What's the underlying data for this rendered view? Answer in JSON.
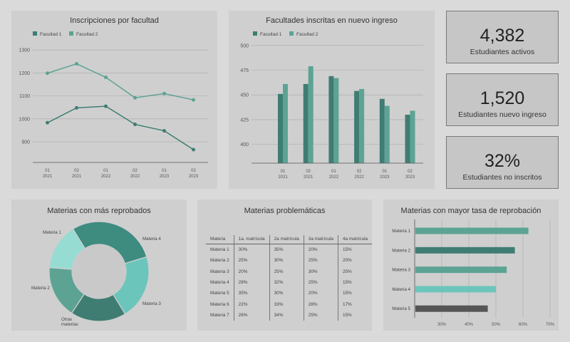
{
  "colors": {
    "dark": "#3f7d73",
    "mid": "#5da394",
    "teal": "#3e8b80",
    "light": "#6cc5bb",
    "pale": "#96dcd3",
    "gray": "#555555",
    "grid": "#aaaaaa"
  },
  "charts": {
    "line": {
      "title": "Inscripciones por facultad",
      "legend": [
        "Facultad 1",
        "Facultad 2"
      ],
      "yticks": [
        "1300",
        "1200",
        "1100",
        "1000",
        "900"
      ],
      "xticks": [
        [
          "01",
          "2021"
        ],
        [
          "02",
          "2021"
        ],
        [
          "01",
          "2022"
        ],
        [
          "02",
          "2022"
        ],
        [
          "01",
          "2023"
        ],
        [
          "02",
          "2023"
        ]
      ]
    },
    "bar": {
      "title": "Facultades inscritas en nuevo ingreso",
      "legend": [
        "Facultad 1",
        "Facultad 2"
      ],
      "yticks": [
        "500",
        "475",
        "450",
        "425",
        "400"
      ],
      "xticks": [
        [
          "01",
          "2021"
        ],
        [
          "02",
          "2021"
        ],
        [
          "01",
          "2022"
        ],
        [
          "02",
          "2022"
        ],
        [
          "01",
          "2023"
        ],
        [
          "02",
          "2023"
        ]
      ]
    },
    "donut": {
      "title": "Materias con más reprobados",
      "labels": [
        "Materia 1",
        "Materia 4",
        "Materia 3",
        "Otras",
        "materias",
        "Materia 2"
      ]
    },
    "hbar": {
      "title": "Materias con mayor tasa de reprobación",
      "labels": [
        "Materia 1",
        "Materia 2",
        "Materia 3",
        "Materia 4",
        "Materia 5"
      ],
      "xticks": [
        "30%",
        "40%",
        "50%",
        "60%",
        "70%"
      ]
    }
  },
  "kpis": [
    {
      "value": "4,382",
      "label": "Estudiantes activos"
    },
    {
      "value": "1,520",
      "label": "Estudiantes nuevo ingreso"
    },
    {
      "value": "32%",
      "label": "Estudiantes no inscritos"
    }
  ],
  "table": {
    "title": "Materias problemáticas",
    "headers": [
      "Materia",
      "1a. matrícula",
      "2a matrícula",
      "3a matrícula",
      "4a matrícula"
    ],
    "rows": [
      [
        "Materia 1",
        "30%",
        "35%",
        "20%",
        "15%"
      ],
      [
        "Materia 2",
        "25%",
        "30%",
        "25%",
        "20%"
      ],
      [
        "Materia 3",
        "20%",
        "25%",
        "30%",
        "25%"
      ],
      [
        "Materia 4",
        "28%",
        "32%",
        "25%",
        "15%"
      ],
      [
        "Materia 5",
        "35%",
        "30%",
        "20%",
        "15%"
      ],
      [
        "Materia 6",
        "22%",
        "33%",
        "28%",
        "17%"
      ],
      [
        "Materia 7",
        "26%",
        "34%",
        "25%",
        "15%"
      ]
    ]
  },
  "chart_data": [
    {
      "type": "line",
      "title": "Inscripciones por facultad",
      "categories": [
        "01 2021",
        "02 2021",
        "01 2022",
        "02 2022",
        "01 2023",
        "02 2023"
      ],
      "series": [
        {
          "name": "Facultad 1",
          "values": [
            983,
            1048,
            1055,
            976,
            948,
            866
          ]
        },
        {
          "name": "Facultad 2",
          "values": [
            1199,
            1240,
            1181,
            1092,
            1110,
            1083
          ]
        }
      ],
      "ylim": [
        810,
        1310
      ],
      "grid": true,
      "legend": "top-left"
    },
    {
      "type": "bar",
      "title": "Facultades inscritas en nuevo ingreso",
      "categories": [
        "01 2021",
        "02 2021",
        "01 2022",
        "02 2022",
        "01 2023",
        "02 2023"
      ],
      "series": [
        {
          "name": "Facultad 1",
          "values": [
            451,
            461,
            469,
            454,
            446,
            430
          ]
        },
        {
          "name": "Facultad 2",
          "values": [
            461,
            479,
            467,
            456,
            439,
            434
          ]
        }
      ],
      "ylim": [
        381,
        502
      ],
      "grid": true,
      "legend": "top-left"
    },
    {
      "type": "pie",
      "title": "Materias con más reprobados",
      "labels": [
        "Materia 1",
        "Materia 4",
        "Materia 3",
        "Otras materias",
        "Materia 2"
      ],
      "values": [
        29,
        21,
        18,
        17,
        15
      ]
    },
    {
      "type": "bar",
      "orientation": "horizontal",
      "title": "Materias con mayor tasa de reprobación",
      "categories": [
        "Materia 1",
        "Materia 2",
        "Materia 3",
        "Materia 4",
        "Materia 5"
      ],
      "values": [
        62,
        57,
        54,
        50,
        47
      ],
      "xlim": [
        20,
        70
      ],
      "grid": true
    }
  ]
}
